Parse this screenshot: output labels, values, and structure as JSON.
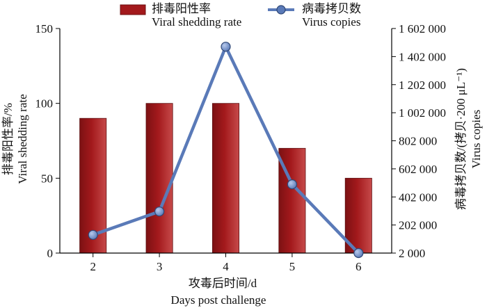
{
  "chart_data": {
    "type": "bar+line",
    "categories": [
      "2",
      "3",
      "4",
      "5",
      "6"
    ],
    "bar_series": {
      "name_cn": "排毒阳性率",
      "name_en": "Viral shedding rate",
      "values": [
        90,
        100,
        100,
        70,
        50
      ],
      "color": "#a3191c"
    },
    "line_series": {
      "name_cn": "病毒拷贝数",
      "name_en": "Virus copies",
      "values": [
        132000,
        298000,
        1472000,
        492000,
        2000
      ],
      "color": "#5a7ab8"
    },
    "x_axis": {
      "label_cn": "攻毒后时间/d",
      "label_en": "Days post challenge"
    },
    "y_left": {
      "label_cn": "排毒阳性率/%",
      "label_en": "Viral shedding rate",
      "ylim": [
        0,
        150
      ],
      "ticks": [
        0,
        50,
        100,
        150
      ],
      "tick_labels": [
        "0",
        "50",
        "100",
        "150"
      ]
    },
    "y_right": {
      "label_cn": "病毒拷贝数/(拷贝·200 μL⁻¹)",
      "label_en": "Virus copies",
      "ylim": [
        2000,
        1602000
      ],
      "ticks": [
        2000,
        202000,
        402000,
        602000,
        802000,
        1002000,
        1202000,
        1402000,
        1602000
      ],
      "tick_labels": [
        "2 000",
        "202 000",
        "402 000",
        "602 000",
        "802 000",
        "1 002 000",
        "1 202 000",
        "1 402 000",
        "1 602 000"
      ]
    },
    "legend": "top"
  }
}
